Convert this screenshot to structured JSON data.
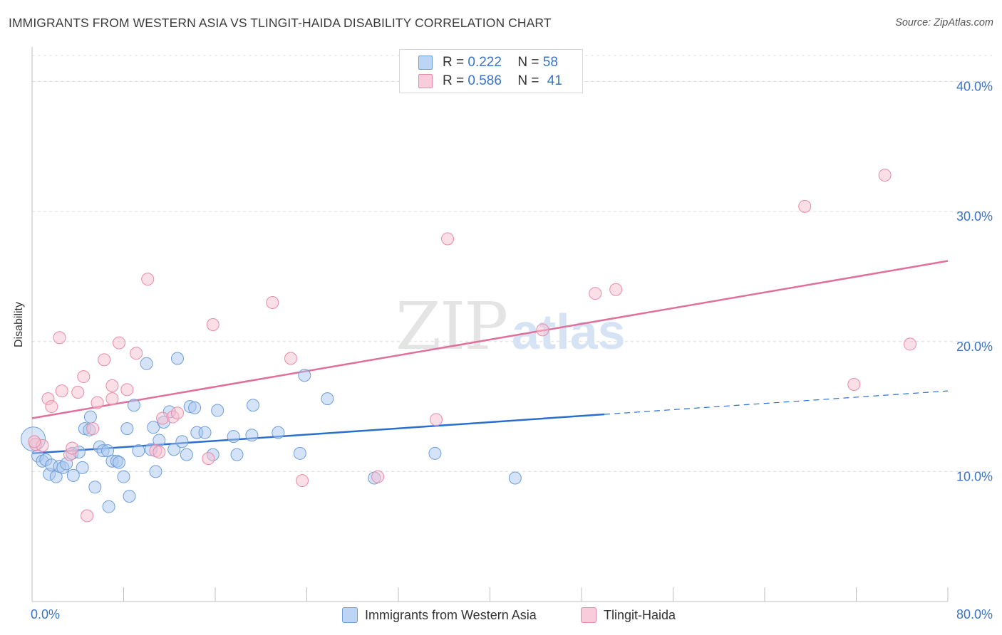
{
  "title": "IMMIGRANTS FROM WESTERN ASIA VS TLINGIT-HAIDA DISABILITY CORRELATION CHART",
  "source": "Source: ZipAtlas.com",
  "legend": {
    "r_label": "R =",
    "n_label": "N =",
    "series": [
      {
        "r": "0.222",
        "n": "58"
      },
      {
        "r": "0.586",
        "n": "41"
      }
    ]
  },
  "colors": {
    "blue_fill": "#a9c8f0",
    "blue_stroke": "#6f9ed8",
    "blue_line": "#2a6fcf",
    "pink_fill": "#f6bfd0",
    "pink_stroke": "#e88aa8",
    "pink_line": "#e0709a",
    "tick_text": "#3a74c8"
  },
  "chart_data": {
    "type": "scatter",
    "title": "IMMIGRANTS FROM WESTERN ASIA VS TLINGIT-HAIDA DISABILITY CORRELATION CHART",
    "ylabel": "Disability",
    "xlabel": "",
    "xlim": [
      0,
      80
    ],
    "ylim": [
      0,
      42
    ],
    "x_tick_labels": [
      "0.0%",
      "80.0%"
    ],
    "y_ticks": [
      10,
      20,
      30,
      40
    ],
    "y_tick_labels": [
      "10.0%",
      "20.0%",
      "30.0%",
      "40.0%"
    ],
    "grid": true,
    "legend_position": "top-center",
    "watermark": "ZIPatlas",
    "series": [
      {
        "name": "Immigrants from Western Asia",
        "color": "#a9c8f0",
        "trend": {
          "x0": 0,
          "y0": 11.4,
          "x1": 50,
          "y1": 14.4,
          "dashed_to_x": 80,
          "dashed_to_y": 16.2
        },
        "points": [
          [
            0.1,
            12.5
          ],
          [
            0.5,
            11.2
          ],
          [
            0.9,
            10.8
          ],
          [
            1.2,
            10.9
          ],
          [
            1.5,
            9.8
          ],
          [
            1.7,
            10.5
          ],
          [
            2.1,
            9.6
          ],
          [
            2.4,
            10.4
          ],
          [
            2.7,
            10.3
          ],
          [
            3.0,
            10.6
          ],
          [
            3.5,
            11.4
          ],
          [
            3.6,
            9.7
          ],
          [
            4.1,
            11.5
          ],
          [
            4.4,
            10.3
          ],
          [
            4.6,
            13.3
          ],
          [
            5.0,
            13.2
          ],
          [
            5.1,
            14.2
          ],
          [
            5.5,
            8.8
          ],
          [
            5.9,
            11.9
          ],
          [
            6.2,
            11.6
          ],
          [
            6.6,
            11.6
          ],
          [
            6.7,
            7.3
          ],
          [
            7.0,
            10.8
          ],
          [
            7.4,
            10.8
          ],
          [
            7.6,
            10.7
          ],
          [
            8.0,
            9.6
          ],
          [
            8.3,
            13.3
          ],
          [
            8.5,
            8.1
          ],
          [
            8.9,
            15.1
          ],
          [
            9.3,
            11.6
          ],
          [
            10.0,
            18.3
          ],
          [
            10.4,
            11.7
          ],
          [
            10.6,
            13.4
          ],
          [
            10.8,
            10.0
          ],
          [
            11.1,
            12.4
          ],
          [
            11.5,
            13.8
          ],
          [
            12.0,
            14.6
          ],
          [
            12.4,
            11.7
          ],
          [
            12.7,
            18.7
          ],
          [
            13.1,
            12.3
          ],
          [
            13.5,
            11.3
          ],
          [
            13.8,
            15.0
          ],
          [
            14.2,
            14.9
          ],
          [
            14.4,
            13.0
          ],
          [
            15.1,
            13.0
          ],
          [
            15.8,
            11.3
          ],
          [
            16.2,
            14.7
          ],
          [
            17.6,
            12.7
          ],
          [
            17.9,
            11.3
          ],
          [
            19.2,
            12.8
          ],
          [
            19.3,
            15.1
          ],
          [
            21.5,
            13.0
          ],
          [
            23.4,
            11.4
          ],
          [
            23.8,
            17.4
          ],
          [
            25.8,
            15.6
          ],
          [
            29.9,
            9.5
          ],
          [
            35.2,
            11.4
          ],
          [
            42.2,
            9.5
          ]
        ]
      },
      {
        "name": "Tlingit-Haida",
        "color": "#f6bfd0",
        "trend": {
          "x0": 0,
          "y0": 14.1,
          "x1": 80,
          "y1": 26.2
        },
        "points": [
          [
            0.3,
            12.1
          ],
          [
            0.9,
            12.0
          ],
          [
            1.4,
            15.6
          ],
          [
            1.7,
            15.0
          ],
          [
            2.4,
            20.3
          ],
          [
            2.6,
            16.2
          ],
          [
            3.3,
            11.3
          ],
          [
            3.5,
            11.8
          ],
          [
            4.0,
            16.1
          ],
          [
            4.5,
            17.3
          ],
          [
            4.8,
            6.6
          ],
          [
            5.3,
            13.3
          ],
          [
            5.7,
            15.3
          ],
          [
            6.3,
            18.6
          ],
          [
            7.0,
            16.6
          ],
          [
            7.0,
            15.6
          ],
          [
            7.6,
            19.9
          ],
          [
            8.3,
            16.3
          ],
          [
            9.1,
            19.1
          ],
          [
            10.1,
            24.8
          ],
          [
            10.8,
            11.6
          ],
          [
            11.1,
            11.5
          ],
          [
            11.4,
            14.1
          ],
          [
            12.3,
            14.2
          ],
          [
            12.7,
            14.5
          ],
          [
            15.4,
            11.0
          ],
          [
            15.8,
            21.3
          ],
          [
            21.0,
            23.0
          ],
          [
            22.6,
            18.7
          ],
          [
            23.6,
            9.3
          ],
          [
            30.2,
            9.6
          ],
          [
            35.3,
            14.0
          ],
          [
            36.3,
            27.9
          ],
          [
            44.6,
            20.9
          ],
          [
            49.2,
            23.7
          ],
          [
            51.0,
            24.0
          ],
          [
            67.5,
            30.4
          ],
          [
            71.8,
            16.7
          ],
          [
            74.5,
            32.8
          ],
          [
            76.7,
            19.8
          ],
          [
            0.2,
            12.3
          ]
        ]
      }
    ]
  },
  "bottom_legend": [
    {
      "label": "Immigrants from Western Asia"
    },
    {
      "label": "Tlingit-Haida"
    }
  ]
}
